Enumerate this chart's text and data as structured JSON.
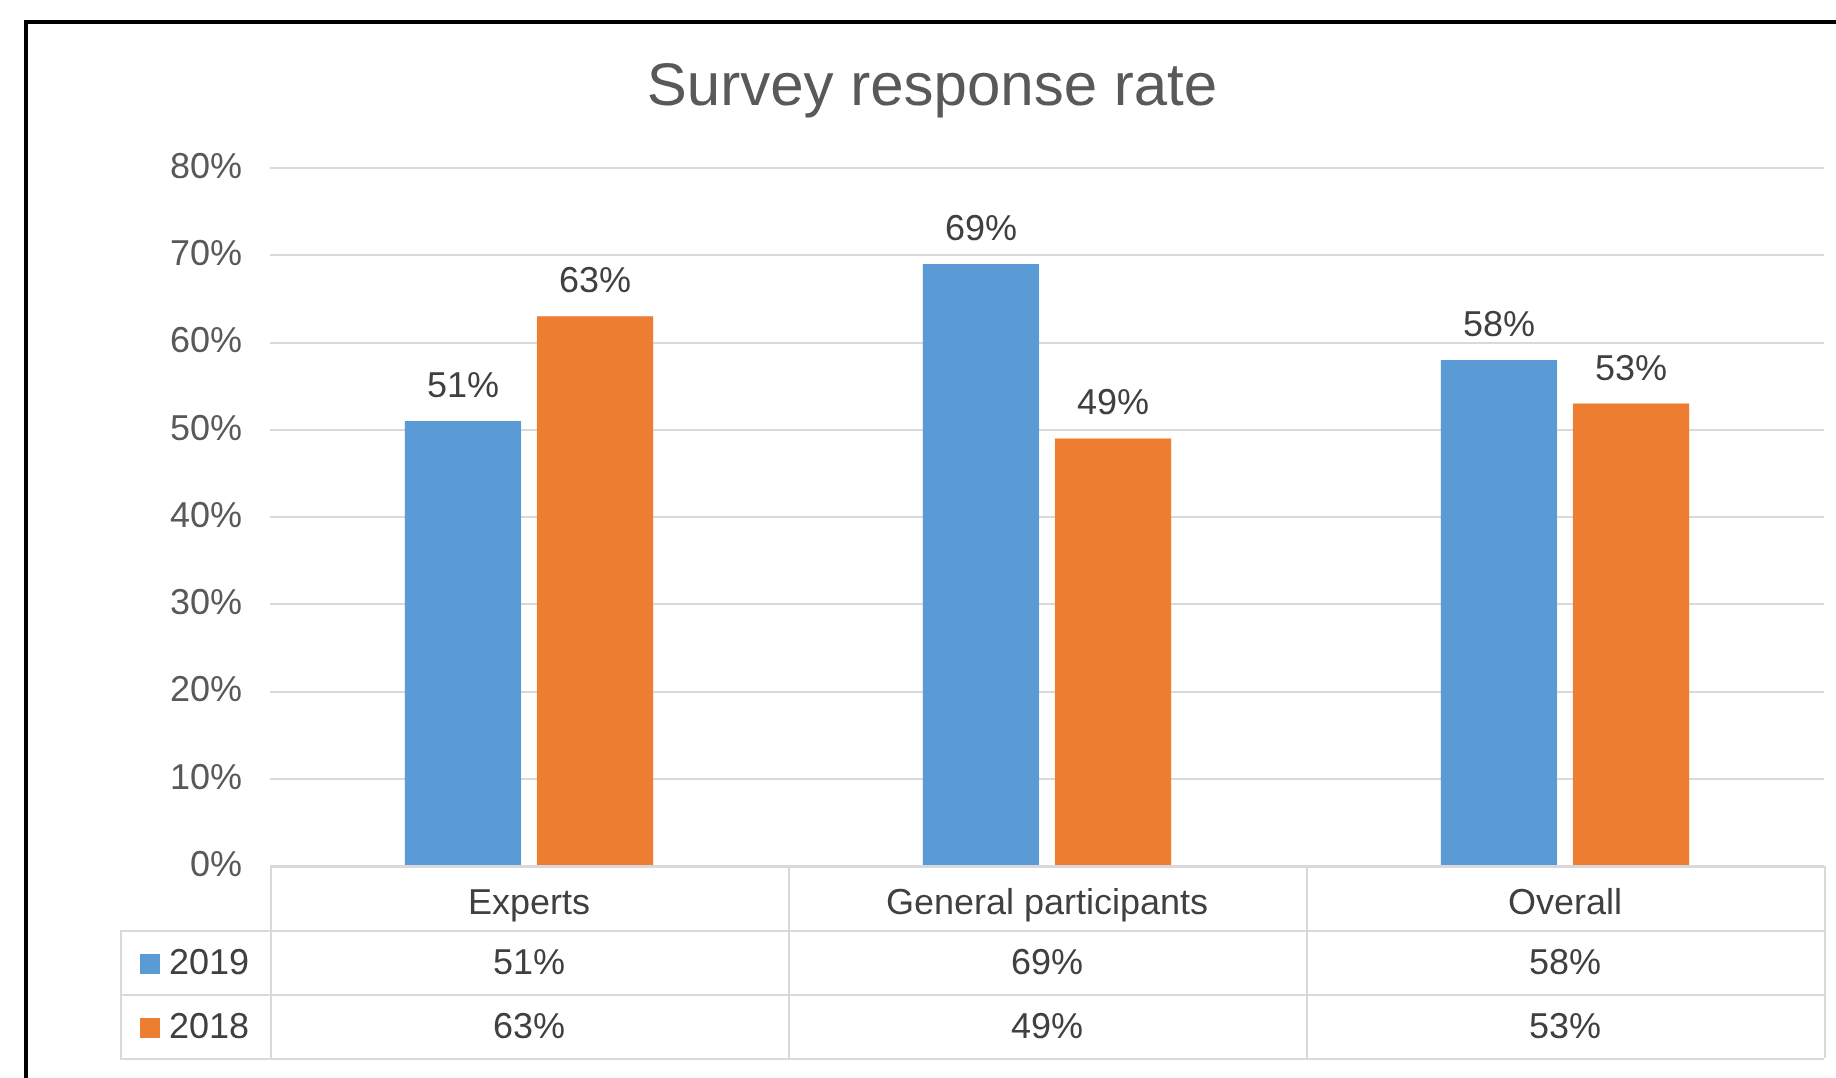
{
  "chart_data": {
    "type": "bar",
    "title": "Survey response rate",
    "categories": [
      "Experts",
      "General participants",
      "Overall"
    ],
    "series": [
      {
        "name": "2019",
        "color": "#5b9bd5",
        "values": [
          51,
          69,
          58
        ],
        "value_labels": [
          "51%",
          "69%",
          "58%"
        ]
      },
      {
        "name": "2018",
        "color": "#ed7d31",
        "values": [
          63,
          49,
          53
        ],
        "value_labels": [
          "63%",
          "49%",
          "53%"
        ]
      }
    ],
    "ylim": [
      0,
      80
    ],
    "yticks": [
      {
        "value": 0,
        "label": "0%"
      },
      {
        "value": 10,
        "label": "10%"
      },
      {
        "value": 20,
        "label": "20%"
      },
      {
        "value": 30,
        "label": "30%"
      },
      {
        "value": 40,
        "label": "40%"
      },
      {
        "value": 50,
        "label": "50%"
      },
      {
        "value": 60,
        "label": "60%"
      },
      {
        "value": 70,
        "label": "70%"
      },
      {
        "value": 80,
        "label": "80%"
      }
    ],
    "grid": "y",
    "legend": "bottom"
  }
}
